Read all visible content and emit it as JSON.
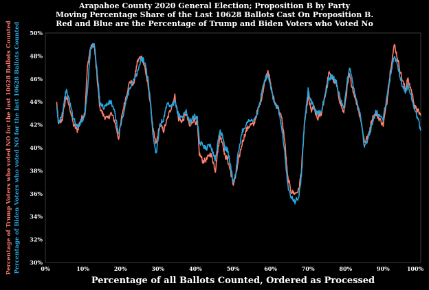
{
  "chart_data": {
    "type": "line",
    "title_lines": [
      "Arapahoe County 2020 General Election; Proposition B by Party",
      "Moving Percentage Share of the Last 10628 Ballots Cast On Proposition B.",
      "Red and Blue are the Percentage of Trump and Biden Voters who Voted No"
    ],
    "xlabel": "Percentage of all Ballots Counted, Ordered as Processed",
    "ylabel_red": "Percentage of Trump Voters who voted NO for the last 10628 Ballots Counted",
    "ylabel_blue": "Percentage of Biden Voters who voted NO for the last 10628 Ballots Counted",
    "xlim": [
      0,
      100
    ],
    "ylim": [
      30,
      50
    ],
    "x_ticks": [
      "0%",
      "10%",
      "20%",
      "30%",
      "40%",
      "50%",
      "60%",
      "70%",
      "80%",
      "90%",
      "100%"
    ],
    "y_ticks": [
      "30%",
      "32%",
      "34%",
      "36%",
      "38%",
      "40%",
      "42%",
      "44%",
      "46%",
      "48%",
      "50%"
    ],
    "grid": false,
    "series": [
      {
        "color": "#ff7f6e",
        "points": [
          [
            3,
            44
          ],
          [
            3.5,
            42
          ],
          [
            4.5,
            42.5
          ],
          [
            5.5,
            44.5
          ],
          [
            6.5,
            43.5
          ],
          [
            7.5,
            42
          ],
          [
            8.5,
            41.5
          ],
          [
            9.5,
            42.5
          ],
          [
            10.5,
            43
          ],
          [
            11.2,
            47
          ],
          [
            12,
            48.7
          ],
          [
            13,
            49
          ],
          [
            13.8,
            46
          ],
          [
            14.5,
            43.5
          ],
          [
            15.5,
            42.8
          ],
          [
            16.5,
            42.5
          ],
          [
            17.5,
            43
          ],
          [
            18.5,
            42.3
          ],
          [
            19.5,
            40.8
          ],
          [
            20.5,
            43
          ],
          [
            21.5,
            44.5
          ],
          [
            22.5,
            45.8
          ],
          [
            23.5,
            45.5
          ],
          [
            24.5,
            47.5
          ],
          [
            25.5,
            48
          ],
          [
            26.5,
            47
          ],
          [
            27.3,
            45.5
          ],
          [
            28,
            43.8
          ],
          [
            28.7,
            41.5
          ],
          [
            29.5,
            40.3
          ],
          [
            30.5,
            42
          ],
          [
            31.5,
            41.5
          ],
          [
            32.5,
            42.5
          ],
          [
            33.5,
            43.5
          ],
          [
            34.5,
            44.5
          ],
          [
            35.5,
            42.5
          ],
          [
            36.5,
            42.3
          ],
          [
            37.5,
            43
          ],
          [
            38.5,
            41.8
          ],
          [
            39.5,
            42.5
          ],
          [
            40.5,
            42
          ],
          [
            41,
            39.5
          ],
          [
            42,
            38.8
          ],
          [
            43,
            39
          ],
          [
            44,
            39.5
          ],
          [
            44.7,
            38.8
          ],
          [
            45.3,
            38
          ],
          [
            46,
            40
          ],
          [
            46.5,
            41
          ],
          [
            47.2,
            40.5
          ],
          [
            47.8,
            39.3
          ],
          [
            48.5,
            39
          ],
          [
            49.3,
            38
          ],
          [
            50,
            36.8
          ],
          [
            50.7,
            37.5
          ],
          [
            51.5,
            39
          ],
          [
            52.5,
            40.5
          ],
          [
            53.5,
            41.5
          ],
          [
            54.5,
            42
          ],
          [
            55.5,
            42
          ],
          [
            56.5,
            43.2
          ],
          [
            57.5,
            44.2
          ],
          [
            58.5,
            45.8
          ],
          [
            59.3,
            46.8
          ],
          [
            60,
            45.5
          ],
          [
            61,
            44
          ],
          [
            62,
            43.5
          ],
          [
            63,
            42.5
          ],
          [
            63.8,
            40.5
          ],
          [
            64.5,
            37.5
          ],
          [
            65.5,
            36.2
          ],
          [
            66.5,
            36
          ],
          [
            67.5,
            36.3
          ],
          [
            68.2,
            38
          ],
          [
            69,
            42
          ],
          [
            70,
            44.5
          ],
          [
            70.8,
            43.2
          ],
          [
            71.5,
            43.5
          ],
          [
            72.5,
            42.5
          ],
          [
            73.5,
            43
          ],
          [
            74.5,
            44.5
          ],
          [
            75.5,
            46.5
          ],
          [
            76.5,
            46
          ],
          [
            77.5,
            45.5
          ],
          [
            78.5,
            44
          ],
          [
            79.5,
            43
          ],
          [
            80.5,
            45.5
          ],
          [
            81,
            46.3
          ],
          [
            82,
            45
          ],
          [
            83,
            43.8
          ],
          [
            84,
            42.5
          ],
          [
            85,
            40.5
          ],
          [
            86,
            41
          ],
          [
            87,
            42.5
          ],
          [
            88,
            43
          ],
          [
            89,
            42.5
          ],
          [
            90,
            42
          ],
          [
            91,
            44
          ],
          [
            92,
            47
          ],
          [
            93,
            49
          ],
          [
            94,
            47.5
          ],
          [
            95,
            46
          ],
          [
            96,
            45
          ],
          [
            96.5,
            46
          ],
          [
            97.5,
            45
          ],
          [
            98.5,
            43.5
          ],
          [
            99.3,
            43.2
          ],
          [
            100,
            42.8
          ]
        ]
      },
      {
        "color": "#29a8e0",
        "points": [
          [
            3,
            43.5
          ],
          [
            3.5,
            42.2
          ],
          [
            4.5,
            43
          ],
          [
            5.5,
            45
          ],
          [
            6.5,
            44
          ],
          [
            7.5,
            42.5
          ],
          [
            8.5,
            41.8
          ],
          [
            9.5,
            42.3
          ],
          [
            10.5,
            42.8
          ],
          [
            11.2,
            45
          ],
          [
            12,
            48.5
          ],
          [
            13,
            49.2
          ],
          [
            13.8,
            46.5
          ],
          [
            14.5,
            44
          ],
          [
            15.5,
            43.5
          ],
          [
            16.5,
            43.8
          ],
          [
            17.5,
            44
          ],
          [
            18.5,
            43
          ],
          [
            19.5,
            41.2
          ],
          [
            20.5,
            42.5
          ],
          [
            21.5,
            44
          ],
          [
            22.5,
            45.3
          ],
          [
            23.5,
            45.8
          ],
          [
            24.5,
            46.5
          ],
          [
            25.5,
            47.8
          ],
          [
            26.5,
            47.5
          ],
          [
            27.3,
            46
          ],
          [
            28,
            44
          ],
          [
            28.7,
            41
          ],
          [
            29.5,
            39.5
          ],
          [
            30.5,
            42
          ],
          [
            31.5,
            42.5
          ],
          [
            32.5,
            43.8
          ],
          [
            33.5,
            43.5
          ],
          [
            34.5,
            44
          ],
          [
            35.5,
            42.8
          ],
          [
            36.5,
            42.7
          ],
          [
            37.5,
            43.2
          ],
          [
            38.5,
            42.2
          ],
          [
            39.5,
            42.8
          ],
          [
            40.5,
            42.5
          ],
          [
            41,
            40.5
          ],
          [
            42,
            40.2
          ],
          [
            43,
            40
          ],
          [
            44,
            40.3
          ],
          [
            44.7,
            39.5
          ],
          [
            45.3,
            39
          ],
          [
            46,
            40.5
          ],
          [
            46.5,
            41.5
          ],
          [
            47.2,
            41
          ],
          [
            47.8,
            40
          ],
          [
            48.5,
            39.8
          ],
          [
            49.3,
            38.5
          ],
          [
            50,
            37
          ],
          [
            50.7,
            37.8
          ],
          [
            51.5,
            39.8
          ],
          [
            52.5,
            41.5
          ],
          [
            53.5,
            42
          ],
          [
            54.5,
            42.5
          ],
          [
            55.5,
            42.3
          ],
          [
            56.5,
            43
          ],
          [
            57.5,
            44.5
          ],
          [
            58.5,
            46
          ],
          [
            59.3,
            46.3
          ],
          [
            60,
            45.2
          ],
          [
            61,
            43.8
          ],
          [
            62,
            43.5
          ],
          [
            63,
            41.8
          ],
          [
            63.8,
            39.5
          ],
          [
            64.5,
            36.8
          ],
          [
            65.5,
            35.8
          ],
          [
            66.5,
            35.3
          ],
          [
            67.5,
            35.7
          ],
          [
            68.2,
            37.5
          ],
          [
            69,
            42
          ],
          [
            70,
            45
          ],
          [
            70.8,
            44
          ],
          [
            71.5,
            43.5
          ],
          [
            72.5,
            43
          ],
          [
            73.5,
            43.2
          ],
          [
            74.5,
            44.5
          ],
          [
            75.5,
            46
          ],
          [
            76.5,
            46.2
          ],
          [
            77.5,
            45.8
          ],
          [
            78.5,
            44.3
          ],
          [
            79.5,
            43.3
          ],
          [
            80.5,
            46
          ],
          [
            81,
            47
          ],
          [
            82,
            45.5
          ],
          [
            83,
            44
          ],
          [
            84,
            42.8
          ],
          [
            85,
            40
          ],
          [
            86,
            40.8
          ],
          [
            87,
            42
          ],
          [
            88,
            43.2
          ],
          [
            89,
            42.8
          ],
          [
            90,
            42.5
          ],
          [
            91,
            44.5
          ],
          [
            92,
            46.5
          ],
          [
            93,
            48
          ],
          [
            94,
            47
          ],
          [
            95,
            45.5
          ],
          [
            96,
            44.8
          ],
          [
            96.5,
            45.5
          ],
          [
            97.5,
            44.5
          ],
          [
            98.5,
            43.2
          ],
          [
            99.3,
            42.5
          ],
          [
            100,
            41.5
          ]
        ]
      }
    ]
  }
}
